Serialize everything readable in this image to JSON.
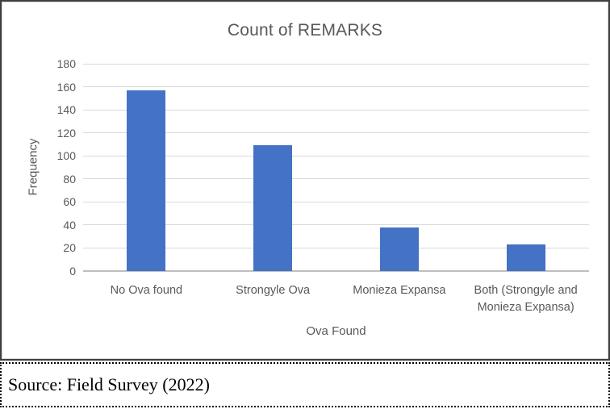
{
  "chart_data": {
    "type": "bar",
    "title": "Count of REMARKS",
    "categories": [
      "No Ova found",
      "Strongyle Ova",
      "Monieza Expansa",
      "Both (Strongyle and Monieza Expansa)"
    ],
    "values": [
      157,
      109,
      38,
      23
    ],
    "xlabel": "Ova Found",
    "ylabel": "Frequency",
    "ylim": [
      0,
      180
    ],
    "yticks": [
      0,
      20,
      40,
      60,
      80,
      100,
      120,
      140,
      160,
      180
    ],
    "grid": true,
    "legend_position": "none",
    "bar_color": "#4472c4"
  },
  "caption": {
    "text": "Source: Field Survey (2022)"
  },
  "colors": {
    "bar": "#4472c4",
    "chart_text": "#595959",
    "gridline": "#d9d9d9",
    "axis_line": "#bfbfbf",
    "chart_frame_border": "#d9d9d9",
    "chart_cell_border": "#3f3f3f",
    "caption_border": "#000000"
  }
}
